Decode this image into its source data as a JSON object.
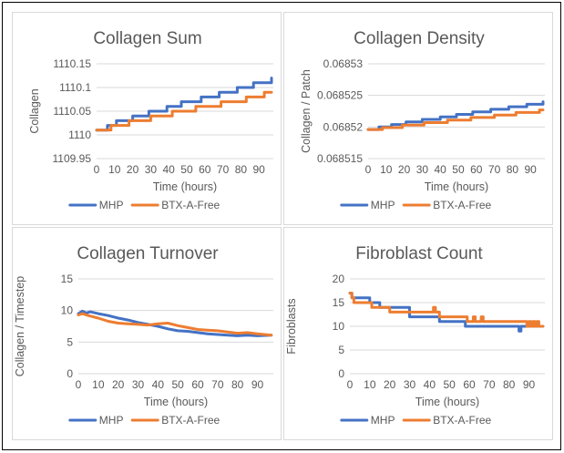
{
  "chart_data": [
    {
      "type": "line",
      "title": "Collagen Sum",
      "xlabel": "Time (hours)",
      "ylabel": "Collagen",
      "xlim": [
        0,
        98
      ],
      "ylim": [
        1109.95,
        1110.15
      ],
      "xticks": [
        0,
        10,
        20,
        30,
        40,
        50,
        60,
        70,
        80,
        90
      ],
      "yticks": [
        1109.95,
        1110,
        1110.05,
        1110.1,
        1110.15
      ],
      "ytick_labels": [
        "1109.95",
        "1110",
        "1110.05",
        "1110.1",
        "1110.15"
      ],
      "gridlines": "horizontal",
      "legend_position": "bottom",
      "series": [
        {
          "name": "MHP",
          "color": "#4472C4",
          "step": true,
          "x": [
            0,
            6,
            11,
            20,
            29,
            39,
            47,
            58,
            68,
            78,
            87,
            96,
            97
          ],
          "y": [
            1110.01,
            1110.02,
            1110.03,
            1110.04,
            1110.05,
            1110.06,
            1110.07,
            1110.08,
            1110.09,
            1110.1,
            1110.11,
            1110.11,
            1110.12
          ]
        },
        {
          "name": "BTX-A-Free",
          "color": "#ED7D31",
          "step": true,
          "x": [
            0,
            8,
            18,
            30,
            42,
            55,
            69,
            83,
            93,
            97
          ],
          "y": [
            1110.01,
            1110.02,
            1110.03,
            1110.04,
            1110.05,
            1110.06,
            1110.07,
            1110.08,
            1110.09,
            1110.09
          ]
        }
      ]
    },
    {
      "type": "line",
      "title": "Collagen Density",
      "xlabel": "Time (hours)",
      "ylabel": "Collagen / Patch",
      "xlim": [
        0,
        98
      ],
      "ylim": [
        0.068515,
        0.06853
      ],
      "xticks": [
        0,
        10,
        20,
        30,
        40,
        50,
        60,
        70,
        80,
        90
      ],
      "yticks": [
        0.068515,
        0.06852,
        0.068525,
        0.06853
      ],
      "ytick_labels": [
        "0.068515",
        "0.06852",
        "0.068525",
        "0.06853"
      ],
      "gridlines": "horizontal",
      "legend_position": "bottom",
      "series": [
        {
          "name": "MHP",
          "color": "#4472C4",
          "step": true,
          "x": [
            0,
            6,
            13,
            21,
            30,
            40,
            49,
            58,
            68,
            78,
            88,
            96,
            97
          ],
          "y": [
            0.0685196,
            0.06852,
            0.0685204,
            0.0685208,
            0.0685212,
            0.0685216,
            0.068522,
            0.0685224,
            0.0685228,
            0.0685232,
            0.0685236,
            0.0685236,
            0.068524
          ]
        },
        {
          "name": "BTX-A-Free",
          "color": "#ED7D31",
          "step": true,
          "x": [
            0,
            8,
            19,
            31,
            44,
            57,
            70,
            82,
            95,
            97
          ],
          "y": [
            0.0685196,
            0.0685199,
            0.0685203,
            0.0685207,
            0.0685211,
            0.0685215,
            0.0685219,
            0.0685223,
            0.0685227,
            0.0685227
          ]
        }
      ]
    },
    {
      "type": "line",
      "title": "Collagen Turnover",
      "xlabel": "Time (hours)",
      "ylabel": "Collagen / Timestep",
      "xlim": [
        0,
        98
      ],
      "ylim": [
        0,
        15
      ],
      "xticks": [
        0,
        10,
        20,
        30,
        40,
        50,
        60,
        70,
        80,
        90
      ],
      "yticks": [
        0,
        5,
        10,
        15
      ],
      "ytick_labels": [
        "0",
        "5",
        "10",
        "15"
      ],
      "gridlines": "horizontal",
      "legend_position": "bottom",
      "series": [
        {
          "name": "MHP",
          "color": "#4472C4",
          "step": false,
          "x": [
            0,
            2,
            4,
            6,
            10,
            15,
            20,
            25,
            30,
            35,
            40,
            45,
            50,
            55,
            60,
            65,
            70,
            75,
            80,
            85,
            90,
            97
          ],
          "y": [
            9.5,
            9.9,
            9.6,
            9.8,
            9.5,
            9.2,
            8.8,
            8.5,
            8.1,
            7.8,
            7.5,
            7.1,
            6.8,
            6.7,
            6.5,
            6.3,
            6.2,
            6.1,
            6.0,
            6.1,
            6.0,
            6.1
          ]
        },
        {
          "name": "BTX-A-Free",
          "color": "#ED7D31",
          "step": false,
          "x": [
            0,
            2,
            5,
            10,
            15,
            20,
            25,
            30,
            35,
            40,
            45,
            50,
            55,
            60,
            65,
            70,
            75,
            80,
            85,
            90,
            97
          ],
          "y": [
            9.3,
            9.5,
            9.2,
            8.8,
            8.3,
            8.0,
            7.9,
            7.8,
            7.7,
            7.9,
            8.0,
            7.6,
            7.3,
            7.0,
            6.9,
            6.8,
            6.6,
            6.4,
            6.5,
            6.3,
            6.1
          ]
        }
      ]
    },
    {
      "type": "line",
      "title": "Fibroblast Count",
      "xlabel": "Time (hours)",
      "ylabel": "Fibroblasts",
      "xlim": [
        0,
        98
      ],
      "ylim": [
        0,
        20
      ],
      "xticks": [
        0,
        10,
        20,
        30,
        40,
        50,
        60,
        70,
        80,
        90
      ],
      "yticks": [
        0,
        5,
        10,
        15,
        20
      ],
      "ytick_labels": [
        "0",
        "5",
        "10",
        "15",
        "20"
      ],
      "gridlines": "horizontal",
      "legend_position": "bottom",
      "series": [
        {
          "name": "MHP",
          "color": "#4472C4",
          "step": true,
          "x": [
            0,
            1,
            3,
            10,
            15,
            30,
            45,
            58,
            84,
            85,
            86,
            97
          ],
          "y": [
            17,
            16,
            16,
            15,
            14,
            12,
            11,
            10,
            10,
            9,
            10,
            10
          ]
        },
        {
          "name": "BTX-A-Free",
          "color": "#ED7D31",
          "step": true,
          "x": [
            0,
            1,
            2,
            4,
            11,
            20,
            42,
            43,
            45,
            59,
            62,
            63,
            66,
            67,
            80,
            89,
            90,
            91,
            92,
            93,
            94,
            95,
            96,
            97
          ],
          "y": [
            17,
            16,
            15,
            15,
            14,
            13,
            14,
            13,
            12,
            11,
            12,
            11,
            12,
            11,
            11,
            10,
            11,
            10,
            11,
            10,
            11,
            10,
            10,
            10
          ]
        }
      ]
    }
  ]
}
